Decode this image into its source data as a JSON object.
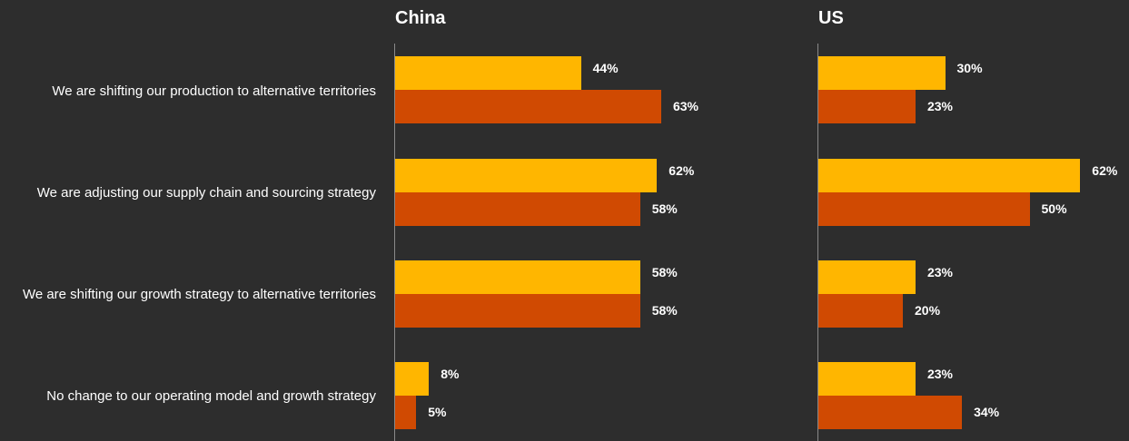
{
  "chart_data": {
    "type": "bar",
    "orientation": "horizontal",
    "categories": [
      "We are shifting our production to alternative territories",
      "We are adjusting our supply chain and sourcing strategy",
      "We are shifting our growth strategy to alternative territories",
      "No change to our operating model and growth strategy"
    ],
    "panels": [
      {
        "title": "China",
        "series": [
          {
            "color": "#ffb600",
            "values": [
              44,
              62,
              58,
              8
            ],
            "labels": [
              "44%",
              "62%",
              "58%",
              "8%"
            ]
          },
          {
            "color": "#d04a02",
            "values": [
              63,
              58,
              58,
              5
            ],
            "labels": [
              "63%",
              "58%",
              "58%",
              "5%"
            ]
          }
        ]
      },
      {
        "title": "US",
        "series": [
          {
            "color": "#ffb600",
            "values": [
              30,
              62,
              23,
              23
            ],
            "labels": [
              "30%",
              "62%",
              "23%",
              "23%"
            ]
          },
          {
            "color": "#d04a02",
            "values": [
              23,
              50,
              20,
              34
            ],
            "labels": [
              "23%",
              "50%",
              "20%",
              "34%"
            ]
          }
        ]
      }
    ],
    "xlim": [
      0,
      100
    ],
    "grid": false,
    "legend": "none"
  }
}
